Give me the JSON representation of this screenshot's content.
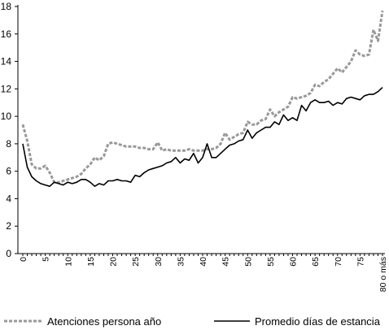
{
  "chart_data": {
    "type": "line",
    "title": "",
    "xlabel": "",
    "ylabel": "",
    "ylim": [
      0,
      18
    ],
    "yticks": [
      0,
      2,
      4,
      6,
      8,
      10,
      12,
      14,
      16,
      18
    ],
    "x_tick_labels": [
      "0",
      "5",
      "10",
      "15",
      "20",
      "25",
      "30",
      "35",
      "40",
      "45",
      "50",
      "55",
      "60",
      "65",
      "70",
      "75",
      "80 o más"
    ],
    "x_tick_values": [
      0,
      5,
      10,
      15,
      20,
      25,
      30,
      35,
      40,
      45,
      50,
      55,
      60,
      65,
      70,
      75,
      80
    ],
    "xlim": [
      0,
      80
    ],
    "grid": false,
    "legend_position": "bottom",
    "series": [
      {
        "name": "Atenciones persona año",
        "style": "dashed",
        "color": "#999999",
        "x": [
          0,
          1,
          2,
          3,
          4,
          5,
          6,
          7,
          8,
          9,
          10,
          11,
          12,
          13,
          14,
          15,
          16,
          17,
          18,
          19,
          20,
          21,
          22,
          23,
          24,
          25,
          26,
          27,
          28,
          29,
          30,
          31,
          32,
          33,
          34,
          35,
          36,
          37,
          38,
          39,
          40,
          41,
          42,
          43,
          44,
          45,
          46,
          47,
          48,
          49,
          50,
          51,
          52,
          53,
          54,
          55,
          56,
          57,
          58,
          59,
          60,
          61,
          62,
          63,
          64,
          65,
          66,
          67,
          68,
          69,
          70,
          71,
          72,
          73,
          74,
          75,
          76,
          77,
          78,
          79,
          80
        ],
        "values": [
          9.4,
          8.2,
          6.5,
          6.2,
          6.2,
          6.4,
          5.9,
          5.2,
          5.2,
          5.3,
          5.4,
          5.5,
          5.6,
          5.8,
          6.2,
          6.5,
          7.0,
          6.8,
          7.1,
          8.0,
          8.1,
          8.0,
          7.9,
          7.8,
          7.8,
          7.8,
          7.7,
          7.7,
          7.6,
          7.6,
          8.1,
          7.5,
          7.6,
          7.5,
          7.5,
          7.5,
          7.5,
          7.6,
          7.5,
          7.5,
          7.5,
          7.6,
          7.6,
          7.7,
          8.0,
          8.8,
          8.3,
          8.5,
          8.7,
          8.8,
          9.6,
          9.4,
          9.4,
          9.7,
          9.8,
          10.5,
          10.0,
          10.3,
          10.5,
          10.7,
          11.4,
          11.3,
          11.4,
          11.5,
          11.7,
          12.3,
          12.2,
          12.5,
          12.7,
          13.1,
          13.5,
          13.2,
          13.6,
          14.0,
          14.8,
          14.5,
          14.4,
          14.5,
          16.3,
          15.5,
          17.7
        ]
      },
      {
        "name": "Promedio días de estancia",
        "style": "solid",
        "color": "#000000",
        "x": [
          0,
          1,
          2,
          3,
          4,
          5,
          6,
          7,
          8,
          9,
          10,
          11,
          12,
          13,
          14,
          15,
          16,
          17,
          18,
          19,
          20,
          21,
          22,
          23,
          24,
          25,
          26,
          27,
          28,
          29,
          30,
          31,
          32,
          33,
          34,
          35,
          36,
          37,
          38,
          39,
          40,
          41,
          42,
          43,
          44,
          45,
          46,
          47,
          48,
          49,
          50,
          51,
          52,
          53,
          54,
          55,
          56,
          57,
          58,
          59,
          60,
          61,
          62,
          63,
          64,
          65,
          66,
          67,
          68,
          69,
          70,
          71,
          72,
          73,
          74,
          75,
          76,
          77,
          78,
          79,
          80
        ],
        "values": [
          8.0,
          6.3,
          5.6,
          5.3,
          5.1,
          5.0,
          4.9,
          5.2,
          5.1,
          5.0,
          5.2,
          5.1,
          5.2,
          5.4,
          5.4,
          5.2,
          4.9,
          5.1,
          5.0,
          5.3,
          5.3,
          5.4,
          5.3,
          5.3,
          5.2,
          5.7,
          5.6,
          5.9,
          6.1,
          6.2,
          6.3,
          6.4,
          6.6,
          6.7,
          7.0,
          6.6,
          6.9,
          6.8,
          7.3,
          6.6,
          7.0,
          8.0,
          7.0,
          7.0,
          7.3,
          7.6,
          7.9,
          8.0,
          8.2,
          8.3,
          9.0,
          8.4,
          8.8,
          9.0,
          9.2,
          9.2,
          9.6,
          9.4,
          10.1,
          9.7,
          9.9,
          9.7,
          10.8,
          10.4,
          11.0,
          11.2,
          11.0,
          11.0,
          11.1,
          10.8,
          11.0,
          10.9,
          11.3,
          11.4,
          11.3,
          11.2,
          11.5,
          11.6,
          11.6,
          11.8,
          12.1
        ]
      }
    ]
  }
}
